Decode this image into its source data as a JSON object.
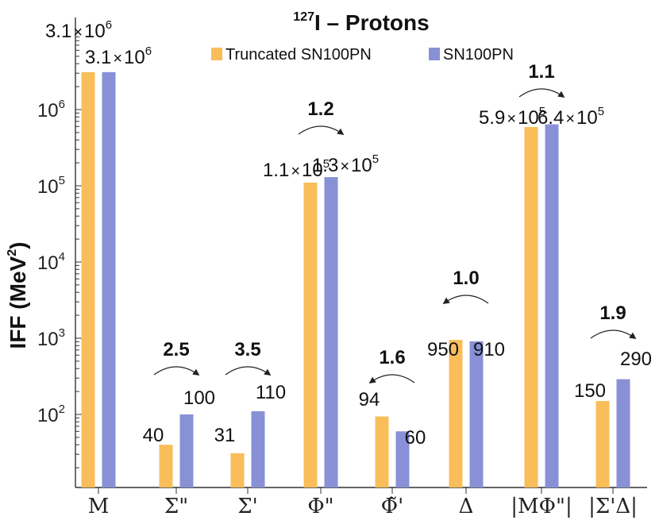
{
  "chart_data": {
    "type": "bar",
    "title": "I – Protons",
    "title_superscript": "127",
    "ylabel": "IFF (MeV",
    "ylabel_superscript": "2",
    "ylabel_close": ")",
    "yscale": "log",
    "ylim": [
      10,
      10000000
    ],
    "yticks": [
      {
        "base": "10",
        "exp": "2",
        "value": 100
      },
      {
        "base": "10",
        "exp": "3",
        "value": 1000
      },
      {
        "base": "10",
        "exp": "4",
        "value": 10000
      },
      {
        "base": "10",
        "exp": "5",
        "value": 100000
      },
      {
        "base": "10",
        "exp": "6",
        "value": 1000000
      }
    ],
    "categories": [
      "M",
      "Σ\"",
      "Σ'",
      "Φ\"",
      "Φ̃'",
      "Δ",
      "|MΦ\"|",
      "|Σ'Δ|"
    ],
    "legend": {
      "position": "top",
      "entries": [
        {
          "name": "Truncated SN100PN",
          "color": "#f9bd5a"
        },
        {
          "name": "SN100PN",
          "color": "#8891d6"
        }
      ]
    },
    "series": [
      {
        "name": "Truncated SN100PN",
        "color": "#f9bd5a",
        "values": [
          3100000,
          40,
          31,
          110000,
          94,
          950,
          590000,
          150
        ],
        "labels": [
          {
            "m": "3.1",
            "x": "×",
            "b": "10",
            "e": "6"
          },
          {
            "m": "40"
          },
          {
            "m": "31"
          },
          {
            "m": "1.1",
            "x": "×",
            "b": "10",
            "e": "5"
          },
          {
            "m": "94"
          },
          {
            "m": "950"
          },
          {
            "m": "5.9",
            "x": "×",
            "b": "10",
            "e": "5"
          },
          {
            "m": "150"
          }
        ]
      },
      {
        "name": "SN100PN",
        "color": "#8891d6",
        "values": [
          3100000,
          100,
          110,
          130000,
          60,
          910,
          640000,
          290
        ],
        "labels": [
          {
            "m": "3.1",
            "x": "×",
            "b": "10",
            "e": "6"
          },
          {
            "m": "100"
          },
          {
            "m": "110"
          },
          {
            "m": "1.3",
            "x": "×",
            "b": "10",
            "e": "5"
          },
          {
            "m": "60"
          },
          {
            "m": "910"
          },
          {
            "m": "6.4",
            "x": "×",
            "b": "10",
            "e": "5"
          },
          {
            "m": "290"
          }
        ]
      }
    ],
    "ratios": [
      {
        "category": 1,
        "text": "2.5",
        "direction": "right"
      },
      {
        "category": 2,
        "text": "3.5",
        "direction": "right"
      },
      {
        "category": 3,
        "text": "1.2",
        "direction": "right"
      },
      {
        "category": 4,
        "text": "1.6",
        "direction": "left"
      },
      {
        "category": 5,
        "text": "1.0",
        "direction": "left"
      },
      {
        "category": 6,
        "text": "1.1",
        "direction": "right"
      },
      {
        "category": 7,
        "text": "1.9",
        "direction": "right"
      }
    ]
  }
}
